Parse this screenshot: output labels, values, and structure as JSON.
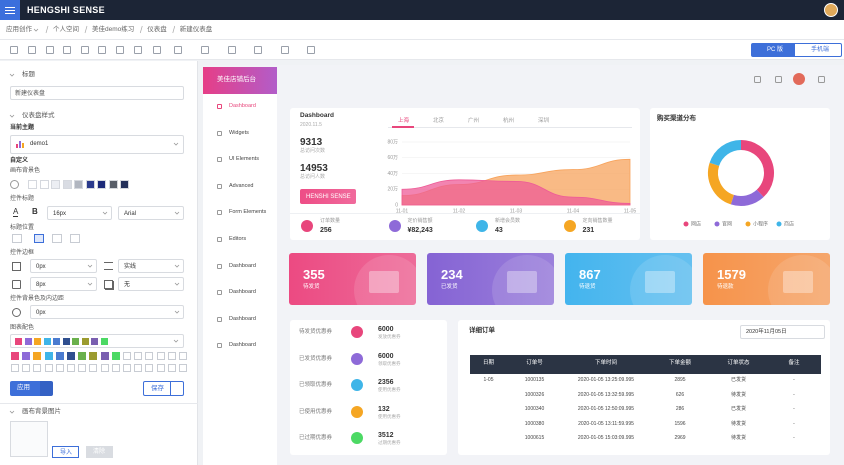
{
  "topbar": {
    "logo": "HENGSHI SENSE"
  },
  "breadcrumb": [
    "应用创作",
    "个人空间",
    "美佳demo练习",
    "仪表盘",
    "新建仪表盘"
  ],
  "toolbar": {
    "pc": "PC 版",
    "mobile": "手机端"
  },
  "settings": {
    "title_section": "标题",
    "title_value": "新建仪表盘",
    "style_section": "仪表盘样式",
    "theme_label": "当前主题",
    "theme_value": "demo1",
    "custom_label": "自定义",
    "canvas_bg": "画布背景色",
    "widget_title": "控件标题",
    "font_color_icon": "A",
    "bold_icon": "B",
    "font_size": "16px",
    "font_family": "Arial",
    "title_position": "标题位置",
    "border": "控件边框",
    "border_width": "0px",
    "border_style": "实线",
    "shadow_width": "8px",
    "shadow_style": "无",
    "bg_padding": "控件背景色及内边距",
    "padding": "0px",
    "palette": "图表配色",
    "apply": "应用",
    "save": "保存",
    "bg_image": "画布背景图片",
    "import": "导入",
    "clear": "清除"
  },
  "dashboard": {
    "brand": "美佳店铺后台",
    "menu": [
      "Dashboard",
      "Widgets",
      "UI Elements",
      "Advanced",
      "Form Elements",
      "Editors",
      "Dashboard",
      "Dashboard",
      "Dashboard",
      "Dashboard"
    ],
    "overview": {
      "title": "Dashboard",
      "date": "2020.11.5",
      "metrics": [
        {
          "value": 9313,
          "label": "总访问次数"
        },
        {
          "value": 14953,
          "label": "总访问人数"
        }
      ],
      "button": "HENSHI SENSE",
      "tabs": [
        "上海",
        "北京",
        "广州",
        "杭州",
        "深圳"
      ],
      "trend": {
        "type": "area",
        "categories": [
          "11-01",
          "11-02",
          "11-03",
          "11-04",
          "11-05"
        ],
        "ylim": [
          0,
          800000
        ],
        "yticks": [
          0,
          {
            "value": 200000,
            "label": "20万"
          },
          {
            "value": 400000,
            "label": "40万"
          },
          {
            "value": 600000,
            "label": "60万"
          },
          {
            "value": 800000,
            "label": "80万"
          }
        ],
        "series": [
          {
            "color": "#f7a35c",
            "values": [
              120000,
              260000,
              380000,
              450000,
              580000
            ]
          },
          {
            "color": "#ee5b97",
            "values": [
              200000,
              320000,
              300000,
              100000,
              20000
            ]
          }
        ]
      },
      "stats": [
        {
          "label": "订单数量",
          "value": 256,
          "color": "#e8467c"
        },
        {
          "label": "定价销售额",
          "value": "¥82,243",
          "color": "#8e6ad8"
        },
        {
          "label": "新增会员数",
          "value": 43,
          "color": "#3fb5e8"
        },
        {
          "label": "定向销售数量",
          "value": 231,
          "color": "#f5a623"
        }
      ]
    },
    "channel": {
      "title": "购买渠道分布",
      "series": [
        {
          "name": "网店",
          "color": "#e8467c",
          "value": 38
        },
        {
          "name": "官网",
          "color": "#8e6ad8",
          "value": 17
        },
        {
          "name": "小程序",
          "color": "#f5a623",
          "value": 25
        },
        {
          "name": "商店",
          "color": "#3fb5e8",
          "value": 20
        }
      ]
    },
    "kpis": [
      {
        "value": 355,
        "label": "待发货",
        "color": "#ec4a82"
      },
      {
        "value": 234,
        "label": "已发货",
        "color": "#8563d4"
      },
      {
        "value": 867,
        "label": "待退货",
        "color": "#43b4ee"
      },
      {
        "value": 1579,
        "label": "待退款",
        "color": "#f6934a"
      }
    ],
    "coupons": [
      {
        "name": "待发货优惠券",
        "count": 6000,
        "note": "发放优惠券",
        "color": "#e8467c"
      },
      {
        "name": "已发货优惠券",
        "count": 6000,
        "note": "领取优惠券",
        "color": "#8e6ad8"
      },
      {
        "name": "已领取优惠券",
        "count": 2356,
        "note": "使用优惠券",
        "color": "#3fb5e8"
      },
      {
        "name": "已使用优惠券",
        "count": 132,
        "note": "使用优惠券",
        "color": "#f5a623"
      },
      {
        "name": "已过期优惠券",
        "count": 3512,
        "note": "过期优惠券",
        "color": "#4cd964"
      }
    ],
    "orders": {
      "title": "详细订单",
      "date": "2020年11月05日",
      "headers": [
        "日期",
        "订单号",
        "下单时间",
        "下单金额",
        "订单状态",
        "备注"
      ],
      "rows": [
        [
          "1-05",
          "1000135",
          "2020-01-05 13:25:09.995",
          "2895",
          "已发货",
          "-"
        ],
        [
          null,
          "1000326",
          "2020-01-05 13:32:59.995",
          "626",
          "待发货",
          "-"
        ],
        [
          null,
          "1000340",
          "2020-01-05 12:50:09.995",
          "286",
          "已发货",
          "-"
        ],
        [
          null,
          "1000380",
          "2020-01-05 13:11:59.995",
          "1596",
          "待发货",
          "-"
        ],
        [
          null,
          "1000615",
          "2020-01-05 15:03:09.995",
          "2969",
          "待发货",
          "-"
        ]
      ]
    }
  }
}
